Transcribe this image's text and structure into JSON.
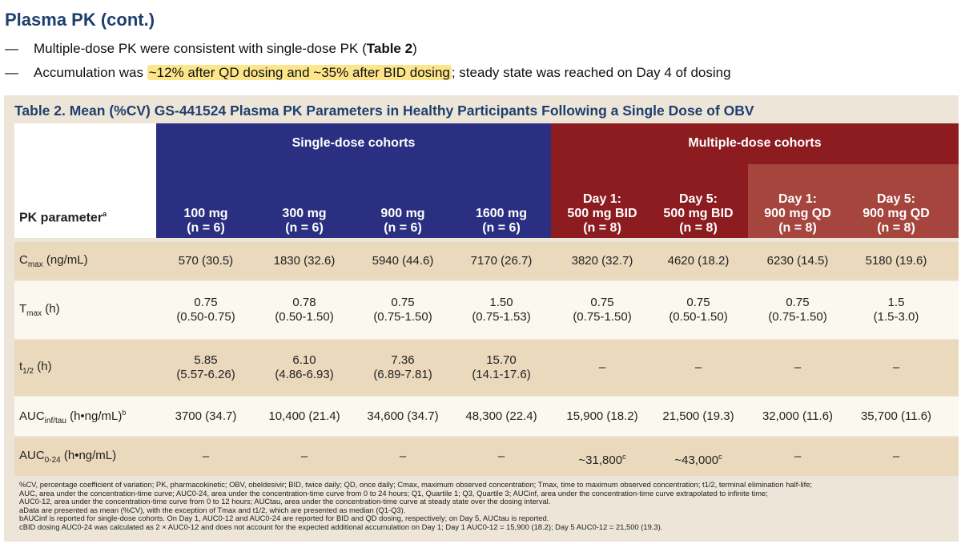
{
  "slide": {
    "title": "Plasma PK (cont.)",
    "bullets": [
      {
        "pre": "Multiple-dose PK were consistent with single-dose PK (",
        "bold": "Table 2",
        "post": ")"
      },
      {
        "pre": "Accumulation was ",
        "highlight": "~12% after QD dosing and ~35% after BID dosing",
        "post": "; steady state was reached on Day 4 of dosing"
      }
    ]
  },
  "table": {
    "title": "Table 2. Mean (%CV) GS-441524 Plasma PK Parameters in Healthy Participants Following a Single Dose of OBV",
    "group_single": "Single-dose cohorts",
    "group_multiple": "Multiple-dose cohorts",
    "pk_header": "PK parameter",
    "pk_header_sup": "a",
    "columns": [
      {
        "l1": "",
        "l2": "100 mg",
        "l3": "(n = 6)"
      },
      {
        "l1": "",
        "l2": "300 mg",
        "l3": "(n = 6)"
      },
      {
        "l1": "",
        "l2": "900 mg",
        "l3": "(n = 6)"
      },
      {
        "l1": "",
        "l2": "1600 mg",
        "l3": "(n = 6)"
      },
      {
        "l1": "Day 1:",
        "l2": "500 mg BID",
        "l3": "(n = 8)"
      },
      {
        "l1": "Day 5:",
        "l2": "500 mg BID",
        "l3": "(n = 8)"
      },
      {
        "l1": "Day 1:",
        "l2": "900 mg QD",
        "l3": "(n = 8)"
      },
      {
        "l1": "Day 5:",
        "l2": "900 mg QD",
        "l3": "(n = 8)"
      }
    ],
    "rows": [
      {
        "label_main": "C",
        "label_sub": "max",
        "label_tail": " (ng/mL)",
        "cells": [
          [
            "570 (30.5)"
          ],
          [
            "1830 (32.6)"
          ],
          [
            "5940 (44.6)"
          ],
          [
            "7170 (26.7)"
          ],
          [
            "3820 (32.7)"
          ],
          [
            "4620 (18.2)"
          ],
          [
            "6230 (14.5)"
          ],
          [
            "5180 (19.6)"
          ]
        ]
      },
      {
        "label_main": "T",
        "label_sub": "max",
        "label_tail": " (h)",
        "cells": [
          [
            "0.75",
            "(0.50-0.75)"
          ],
          [
            "0.78",
            "(0.50-1.50)"
          ],
          [
            "0.75",
            "(0.75-1.50)"
          ],
          [
            "1.50",
            "(0.75-1.53)"
          ],
          [
            "0.75",
            "(0.75-1.50)"
          ],
          [
            "0.75",
            "(0.50-1.50)"
          ],
          [
            "0.75",
            "(0.75-1.50)"
          ],
          [
            "1.5",
            "(1.5-3.0)"
          ]
        ]
      },
      {
        "label_main": "t",
        "label_sub": "1/2",
        "label_tail": " (h)",
        "cells": [
          [
            "5.85",
            "(5.57-6.26)"
          ],
          [
            "6.10",
            "(4.86-6.93)"
          ],
          [
            "7.36",
            "(6.89-7.81)"
          ],
          [
            "15.70",
            "(14.1-17.6)"
          ],
          [
            "–"
          ],
          [
            "–"
          ],
          [
            "–"
          ],
          [
            "–"
          ]
        ]
      },
      {
        "label_main": "AUC",
        "label_sub": "inf/tau",
        "label_tail": " (h•ng/mL)",
        "label_sup": "b",
        "cells": [
          [
            "3700 (34.7)"
          ],
          [
            "10,400 (21.4)"
          ],
          [
            "34,600 (34.7)"
          ],
          [
            "48,300 (22.4)"
          ],
          [
            "15,900 (18.2)"
          ],
          [
            "21,500 (19.3)"
          ],
          [
            "32,000 (11.6)"
          ],
          [
            "35,700 (11.6)"
          ]
        ]
      },
      {
        "label_main": "AUC",
        "label_sub": "0-24",
        "label_tail": " (h•ng/mL)",
        "cells": [
          [
            "–"
          ],
          [
            "–"
          ],
          [
            "–"
          ],
          [
            "–"
          ],
          [
            "~31,800",
            "",
            "c"
          ],
          [
            "~43,000",
            "",
            "c"
          ],
          [
            "–"
          ],
          [
            "–"
          ]
        ]
      }
    ],
    "footnotes": [
      "%CV, percentage coefficient of variation; PK, pharmacokinetic; OBV, obeldesivir; BID, twice daily; QD, once daily; Cmax, maximum observed concentration; Tmax, time to maximum observed concentration; t1/2, terminal elimination half-life;",
      "AUC, area under the concentration-time curve; AUC0-24, area under the concentration-time curve from 0 to 24 hours; Q1, Quartile 1; Q3, Quartile 3; AUCinf, area under the concentration-time curve extrapolated to infinite time;",
      "AUC0-12, area under the concentration-time curve from 0 to 12 hours; AUCtau, area under the concentration-time curve at steady state over the dosing interval.",
      "aData are presented as mean (%CV), with the exception of Tmax and t1/2, which are presented as median (Q1-Q3).",
      "bAUCinf is reported for single-dose cohorts. On Day 1, AUC0-12 and AUC0-24 are reported for BID and QD dosing, respectively; on Day 5, AUCtau is reported.",
      "cBID dosing AUC0-24 was calculated as 2 × AUC0-12 and does not account for the expected additional accumulation on Day 1; Day 1 AUC0-12 = 15,900 (18.2); Day 5 AUC0-12 = 21,500 (19.3)."
    ]
  }
}
